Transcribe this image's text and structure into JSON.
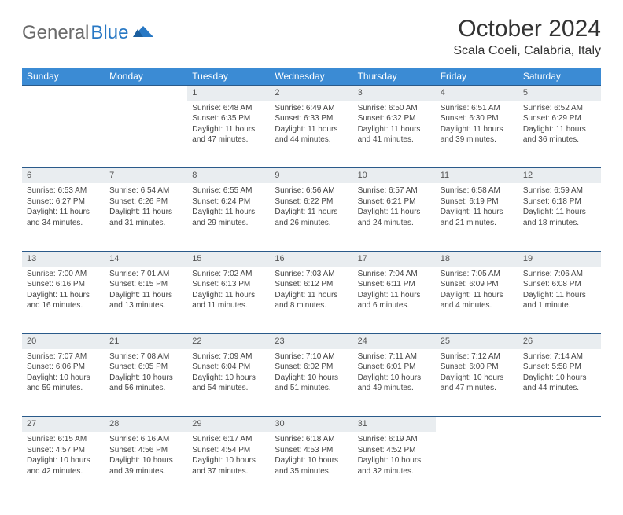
{
  "logo": {
    "text_a": "General",
    "text_b": "Blue"
  },
  "title": "October 2024",
  "location": "Scala Coeli, Calabria, Italy",
  "header_bg": "#3b8bd4",
  "header_fg": "#ffffff",
  "daynum_bg": "#e9edf0",
  "rule_color": "#2a5a8a",
  "weekdays": [
    "Sunday",
    "Monday",
    "Tuesday",
    "Wednesday",
    "Thursday",
    "Friday",
    "Saturday"
  ],
  "weeks": [
    [
      null,
      null,
      {
        "n": "1",
        "sr": "Sunrise: 6:48 AM",
        "ss": "Sunset: 6:35 PM",
        "d1": "Daylight: 11 hours",
        "d2": "and 47 minutes."
      },
      {
        "n": "2",
        "sr": "Sunrise: 6:49 AM",
        "ss": "Sunset: 6:33 PM",
        "d1": "Daylight: 11 hours",
        "d2": "and 44 minutes."
      },
      {
        "n": "3",
        "sr": "Sunrise: 6:50 AM",
        "ss": "Sunset: 6:32 PM",
        "d1": "Daylight: 11 hours",
        "d2": "and 41 minutes."
      },
      {
        "n": "4",
        "sr": "Sunrise: 6:51 AM",
        "ss": "Sunset: 6:30 PM",
        "d1": "Daylight: 11 hours",
        "d2": "and 39 minutes."
      },
      {
        "n": "5",
        "sr": "Sunrise: 6:52 AM",
        "ss": "Sunset: 6:29 PM",
        "d1": "Daylight: 11 hours",
        "d2": "and 36 minutes."
      }
    ],
    [
      {
        "n": "6",
        "sr": "Sunrise: 6:53 AM",
        "ss": "Sunset: 6:27 PM",
        "d1": "Daylight: 11 hours",
        "d2": "and 34 minutes."
      },
      {
        "n": "7",
        "sr": "Sunrise: 6:54 AM",
        "ss": "Sunset: 6:26 PM",
        "d1": "Daylight: 11 hours",
        "d2": "and 31 minutes."
      },
      {
        "n": "8",
        "sr": "Sunrise: 6:55 AM",
        "ss": "Sunset: 6:24 PM",
        "d1": "Daylight: 11 hours",
        "d2": "and 29 minutes."
      },
      {
        "n": "9",
        "sr": "Sunrise: 6:56 AM",
        "ss": "Sunset: 6:22 PM",
        "d1": "Daylight: 11 hours",
        "d2": "and 26 minutes."
      },
      {
        "n": "10",
        "sr": "Sunrise: 6:57 AM",
        "ss": "Sunset: 6:21 PM",
        "d1": "Daylight: 11 hours",
        "d2": "and 24 minutes."
      },
      {
        "n": "11",
        "sr": "Sunrise: 6:58 AM",
        "ss": "Sunset: 6:19 PM",
        "d1": "Daylight: 11 hours",
        "d2": "and 21 minutes."
      },
      {
        "n": "12",
        "sr": "Sunrise: 6:59 AM",
        "ss": "Sunset: 6:18 PM",
        "d1": "Daylight: 11 hours",
        "d2": "and 18 minutes."
      }
    ],
    [
      {
        "n": "13",
        "sr": "Sunrise: 7:00 AM",
        "ss": "Sunset: 6:16 PM",
        "d1": "Daylight: 11 hours",
        "d2": "and 16 minutes."
      },
      {
        "n": "14",
        "sr": "Sunrise: 7:01 AM",
        "ss": "Sunset: 6:15 PM",
        "d1": "Daylight: 11 hours",
        "d2": "and 13 minutes."
      },
      {
        "n": "15",
        "sr": "Sunrise: 7:02 AM",
        "ss": "Sunset: 6:13 PM",
        "d1": "Daylight: 11 hours",
        "d2": "and 11 minutes."
      },
      {
        "n": "16",
        "sr": "Sunrise: 7:03 AM",
        "ss": "Sunset: 6:12 PM",
        "d1": "Daylight: 11 hours",
        "d2": "and 8 minutes."
      },
      {
        "n": "17",
        "sr": "Sunrise: 7:04 AM",
        "ss": "Sunset: 6:11 PM",
        "d1": "Daylight: 11 hours",
        "d2": "and 6 minutes."
      },
      {
        "n": "18",
        "sr": "Sunrise: 7:05 AM",
        "ss": "Sunset: 6:09 PM",
        "d1": "Daylight: 11 hours",
        "d2": "and 4 minutes."
      },
      {
        "n": "19",
        "sr": "Sunrise: 7:06 AM",
        "ss": "Sunset: 6:08 PM",
        "d1": "Daylight: 11 hours",
        "d2": "and 1 minute."
      }
    ],
    [
      {
        "n": "20",
        "sr": "Sunrise: 7:07 AM",
        "ss": "Sunset: 6:06 PM",
        "d1": "Daylight: 10 hours",
        "d2": "and 59 minutes."
      },
      {
        "n": "21",
        "sr": "Sunrise: 7:08 AM",
        "ss": "Sunset: 6:05 PM",
        "d1": "Daylight: 10 hours",
        "d2": "and 56 minutes."
      },
      {
        "n": "22",
        "sr": "Sunrise: 7:09 AM",
        "ss": "Sunset: 6:04 PM",
        "d1": "Daylight: 10 hours",
        "d2": "and 54 minutes."
      },
      {
        "n": "23",
        "sr": "Sunrise: 7:10 AM",
        "ss": "Sunset: 6:02 PM",
        "d1": "Daylight: 10 hours",
        "d2": "and 51 minutes."
      },
      {
        "n": "24",
        "sr": "Sunrise: 7:11 AM",
        "ss": "Sunset: 6:01 PM",
        "d1": "Daylight: 10 hours",
        "d2": "and 49 minutes."
      },
      {
        "n": "25",
        "sr": "Sunrise: 7:12 AM",
        "ss": "Sunset: 6:00 PM",
        "d1": "Daylight: 10 hours",
        "d2": "and 47 minutes."
      },
      {
        "n": "26",
        "sr": "Sunrise: 7:14 AM",
        "ss": "Sunset: 5:58 PM",
        "d1": "Daylight: 10 hours",
        "d2": "and 44 minutes."
      }
    ],
    [
      {
        "n": "27",
        "sr": "Sunrise: 6:15 AM",
        "ss": "Sunset: 4:57 PM",
        "d1": "Daylight: 10 hours",
        "d2": "and 42 minutes."
      },
      {
        "n": "28",
        "sr": "Sunrise: 6:16 AM",
        "ss": "Sunset: 4:56 PM",
        "d1": "Daylight: 10 hours",
        "d2": "and 39 minutes."
      },
      {
        "n": "29",
        "sr": "Sunrise: 6:17 AM",
        "ss": "Sunset: 4:54 PM",
        "d1": "Daylight: 10 hours",
        "d2": "and 37 minutes."
      },
      {
        "n": "30",
        "sr": "Sunrise: 6:18 AM",
        "ss": "Sunset: 4:53 PM",
        "d1": "Daylight: 10 hours",
        "d2": "and 35 minutes."
      },
      {
        "n": "31",
        "sr": "Sunrise: 6:19 AM",
        "ss": "Sunset: 4:52 PM",
        "d1": "Daylight: 10 hours",
        "d2": "and 32 minutes."
      },
      null,
      null
    ]
  ]
}
